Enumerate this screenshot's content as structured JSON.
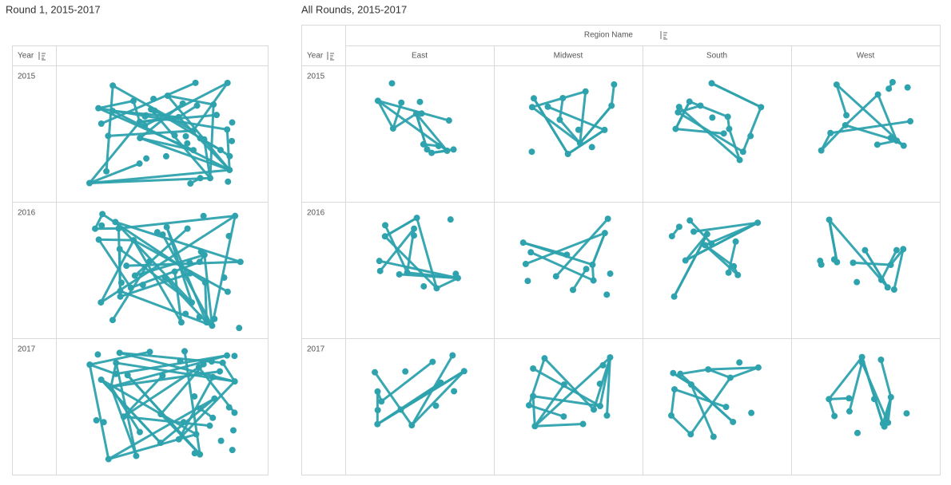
{
  "left": {
    "title": "Round 1, 2015-2017",
    "header": "Year",
    "rows": [
      "2015",
      "2016",
      "2017"
    ]
  },
  "right": {
    "title": "All Rounds, 2015-2017",
    "group_header": "Region Name",
    "year_header": "Year",
    "columns": [
      "East",
      "Midwest",
      "South",
      "West"
    ],
    "rows": [
      "2015",
      "2016",
      "2017"
    ]
  }
}
